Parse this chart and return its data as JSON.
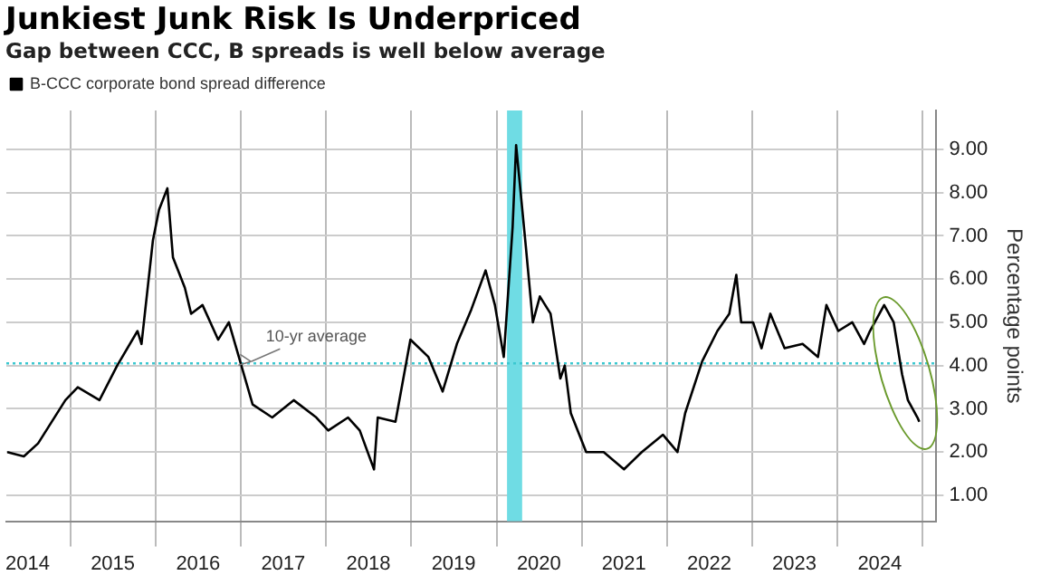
{
  "chart_data": {
    "type": "line",
    "title": "Junkiest Junk Risk Is Underpriced",
    "subtitle": "Gap between CCC, B spreads is well below average",
    "ylabel": "Percentage points",
    "x": [
      "2014-04-05",
      "2014-06-15",
      "2014-08-15",
      "2014-12-10",
      "2015-02-01",
      "2015-05-05",
      "2015-07-20",
      "2015-10-15",
      "2015-11-01",
      "2015-12-20",
      "2016-01-15",
      "2016-02-20",
      "2016-03-15",
      "2016-05-05",
      "2016-06-01",
      "2016-07-20",
      "2016-09-25",
      "2016-11-10",
      "2017-02-20",
      "2017-05-15",
      "2017-08-15",
      "2017-11-20",
      "2018-01-10",
      "2018-04-05",
      "2018-05-25",
      "2018-07-25",
      "2018-08-10",
      "2018-10-25",
      "2018-12-28",
      "2019-03-15",
      "2019-05-15",
      "2019-07-15",
      "2019-09-15",
      "2019-11-15",
      "2019-12-25",
      "2020-02-01",
      "2020-03-10",
      "2020-03-25",
      "2020-05-05",
      "2020-06-05",
      "2020-07-05",
      "2020-08-20",
      "2020-10-01",
      "2020-10-20",
      "2020-11-15",
      "2021-01-20",
      "2021-04-05",
      "2021-07-01",
      "2021-09-15",
      "2021-12-15",
      "2022-02-15",
      "2022-03-20",
      "2022-06-01",
      "2022-08-05",
      "2022-09-25",
      "2022-10-25",
      "2022-11-15",
      "2023-01-05",
      "2023-02-10",
      "2023-03-20",
      "2023-05-20",
      "2023-08-05",
      "2023-10-10",
      "2023-11-15",
      "2024-01-05",
      "2024-03-05",
      "2024-04-25",
      "2024-05-20",
      "2024-07-20",
      "2024-08-30",
      "2024-10-05",
      "2024-10-30",
      "2024-12-10",
      "2024-12-18"
    ],
    "series": [
      {
        "name": "B-CCC corporate bond spread difference",
        "color": "#000000",
        "values": [
          2.0,
          1.9,
          2.2,
          3.2,
          3.5,
          3.2,
          4.0,
          4.8,
          4.5,
          6.9,
          7.6,
          8.1,
          6.5,
          5.8,
          5.2,
          5.4,
          4.6,
          5.0,
          3.1,
          2.8,
          3.2,
          2.8,
          2.5,
          2.8,
          2.5,
          1.6,
          2.8,
          2.7,
          4.6,
          4.2,
          3.4,
          4.5,
          5.3,
          6.2,
          5.4,
          4.2,
          7.2,
          9.1,
          6.8,
          5.0,
          5.6,
          5.2,
          3.7,
          4.0,
          2.9,
          2.0,
          2.0,
          1.6,
          2.0,
          2.4,
          2.0,
          2.9,
          4.1,
          4.8,
          5.2,
          6.1,
          5.0,
          5.0,
          4.4,
          5.2,
          4.4,
          4.5,
          4.2,
          5.4,
          4.8,
          5.0,
          4.5,
          4.8,
          5.4,
          5.0,
          3.8,
          3.2,
          2.8,
          2.7
        ]
      }
    ],
    "xlim": [
      "2014-04-01",
      "2025-03-01"
    ],
    "xticks": [
      {
        "value": "2014-07-01",
        "label": "2014"
      },
      {
        "value": "2015-01-01",
        "label": null
      },
      {
        "value": "2015-07-01",
        "label": "2015"
      },
      {
        "value": "2016-01-01",
        "label": null
      },
      {
        "value": "2016-07-01",
        "label": "2016"
      },
      {
        "value": "2017-01-01",
        "label": null
      },
      {
        "value": "2017-07-01",
        "label": "2017"
      },
      {
        "value": "2018-01-01",
        "label": null
      },
      {
        "value": "2018-07-01",
        "label": "2018"
      },
      {
        "value": "2019-01-01",
        "label": null
      },
      {
        "value": "2019-07-01",
        "label": "2019"
      },
      {
        "value": "2020-01-01",
        "label": null
      },
      {
        "value": "2020-07-01",
        "label": "2020"
      },
      {
        "value": "2021-01-01",
        "label": null
      },
      {
        "value": "2021-07-01",
        "label": "2021"
      },
      {
        "value": "2022-01-01",
        "label": null
      },
      {
        "value": "2022-07-01",
        "label": "2022"
      },
      {
        "value": "2023-01-01",
        "label": null
      },
      {
        "value": "2023-07-01",
        "label": "2023"
      },
      {
        "value": "2024-01-01",
        "label": null
      },
      {
        "value": "2024-07-01",
        "label": "2024"
      },
      {
        "value": "2025-01-01",
        "label": null
      }
    ],
    "ylim": [
      0.4,
      9.9
    ],
    "yticks": [
      {
        "value": 1,
        "label": "1.00"
      },
      {
        "value": 2,
        "label": "2.00"
      },
      {
        "value": 3,
        "label": "3.00"
      },
      {
        "value": 4,
        "label": "4.00"
      },
      {
        "value": 5,
        "label": "5.00"
      },
      {
        "value": 6,
        "label": "6.00"
      },
      {
        "value": 7,
        "label": "7.00"
      },
      {
        "value": 8,
        "label": "8.00"
      },
      {
        "value": 9,
        "label": "9.00"
      }
    ],
    "ref_lines": [
      {
        "axis": "y",
        "value": 4.05,
        "color": "#3cc8d0",
        "line_style": "dotted"
      }
    ],
    "bands": [
      {
        "axis": "x",
        "from": "2020-02-15",
        "to": "2020-04-20",
        "color": "#6fdce4"
      }
    ],
    "annotations": [
      {
        "text": "10-yr average",
        "x": "2017-03-01",
        "y": 4.05
      }
    ],
    "grid": true,
    "legend": "top left",
    "marker": "none",
    "line_style": "solid"
  }
}
